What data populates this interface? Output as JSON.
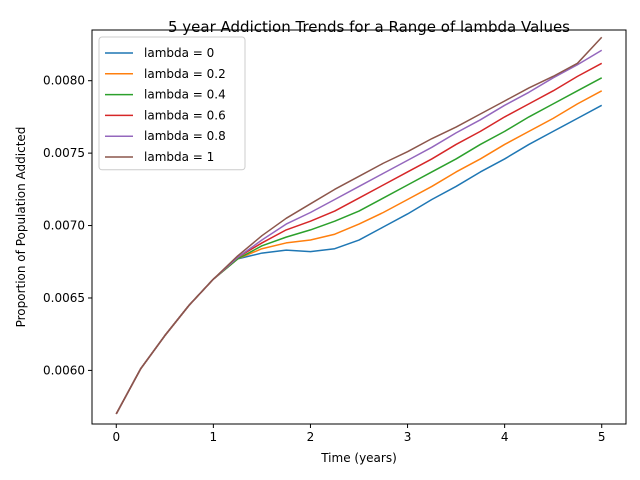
{
  "chart_data": {
    "type": "line",
    "title": "5 year Addiction Trends for a Range of lambda Values",
    "xlabel": "Time (years)",
    "ylabel": "Proportion of Population Addicted",
    "xlim": [
      -0.25,
      5.25
    ],
    "ylim": [
      0.00563,
      0.00835
    ],
    "x_ticks": [
      0,
      1,
      2,
      3,
      4,
      5
    ],
    "x_tick_labels": [
      "0",
      "1",
      "2",
      "3",
      "4",
      "5"
    ],
    "y_ticks": [
      0.006,
      0.0065,
      0.007,
      0.0075,
      0.008
    ],
    "y_tick_labels": [
      "0.0060",
      "0.0065",
      "0.0070",
      "0.0075",
      "0.0080"
    ],
    "grid": false,
    "legend_position": "top-left",
    "x": [
      0,
      0.25,
      0.5,
      0.75,
      1.0,
      1.25,
      1.5,
      1.75,
      2.0,
      2.25,
      2.5,
      2.75,
      3.0,
      3.25,
      3.5,
      3.75,
      4.0,
      4.25,
      4.5,
      4.75,
      5.0
    ],
    "series": [
      {
        "name": "lambda = 0",
        "color": "#1f77b4",
        "values": [
          0.0057,
          0.00601,
          0.00624,
          0.00645,
          0.00663,
          0.00677,
          0.00681,
          0.00683,
          0.00682,
          0.00684,
          0.0069,
          0.00699,
          0.00708,
          0.00718,
          0.00727,
          0.00737,
          0.00746,
          0.00756,
          0.00765,
          0.00774,
          0.00783
        ]
      },
      {
        "name": "lambda = 0.2",
        "color": "#ff7f0e",
        "values": [
          0.0057,
          0.00601,
          0.00624,
          0.00645,
          0.00663,
          0.00677,
          0.00684,
          0.00688,
          0.0069,
          0.00694,
          0.00701,
          0.00709,
          0.00718,
          0.00727,
          0.00737,
          0.00746,
          0.00756,
          0.00765,
          0.00774,
          0.00784,
          0.00793
        ]
      },
      {
        "name": "lambda = 0.4",
        "color": "#2ca02c",
        "values": [
          0.0057,
          0.00601,
          0.00624,
          0.00645,
          0.00663,
          0.00677,
          0.00686,
          0.00692,
          0.00697,
          0.00703,
          0.0071,
          0.00719,
          0.00728,
          0.00737,
          0.00746,
          0.00756,
          0.00765,
          0.00775,
          0.00784,
          0.00793,
          0.00802
        ]
      },
      {
        "name": "lambda = 0.6",
        "color": "#d62728",
        "values": [
          0.0057,
          0.00601,
          0.00624,
          0.00645,
          0.00663,
          0.00678,
          0.00688,
          0.00697,
          0.00703,
          0.0071,
          0.00719,
          0.00728,
          0.00737,
          0.00746,
          0.00756,
          0.00765,
          0.00775,
          0.00784,
          0.00793,
          0.00803,
          0.00812
        ]
      },
      {
        "name": "lambda = 0.8",
        "color": "#9467bd",
        "values": [
          0.0057,
          0.00601,
          0.00624,
          0.00645,
          0.00663,
          0.00678,
          0.0069,
          0.00701,
          0.00709,
          0.00718,
          0.00727,
          0.00736,
          0.00745,
          0.00754,
          0.00764,
          0.00773,
          0.00783,
          0.00792,
          0.00802,
          0.00811,
          0.00821
        ]
      },
      {
        "name": "lambda = 1",
        "color": "#8c564b",
        "values": [
          0.0057,
          0.00601,
          0.00624,
          0.00645,
          0.00663,
          0.00679,
          0.00693,
          0.00705,
          0.00715,
          0.00725,
          0.00734,
          0.00743,
          0.00751,
          0.0076,
          0.00768,
          0.00777,
          0.00786,
          0.00795,
          0.00803,
          0.00812,
          0.0083
        ]
      }
    ]
  }
}
